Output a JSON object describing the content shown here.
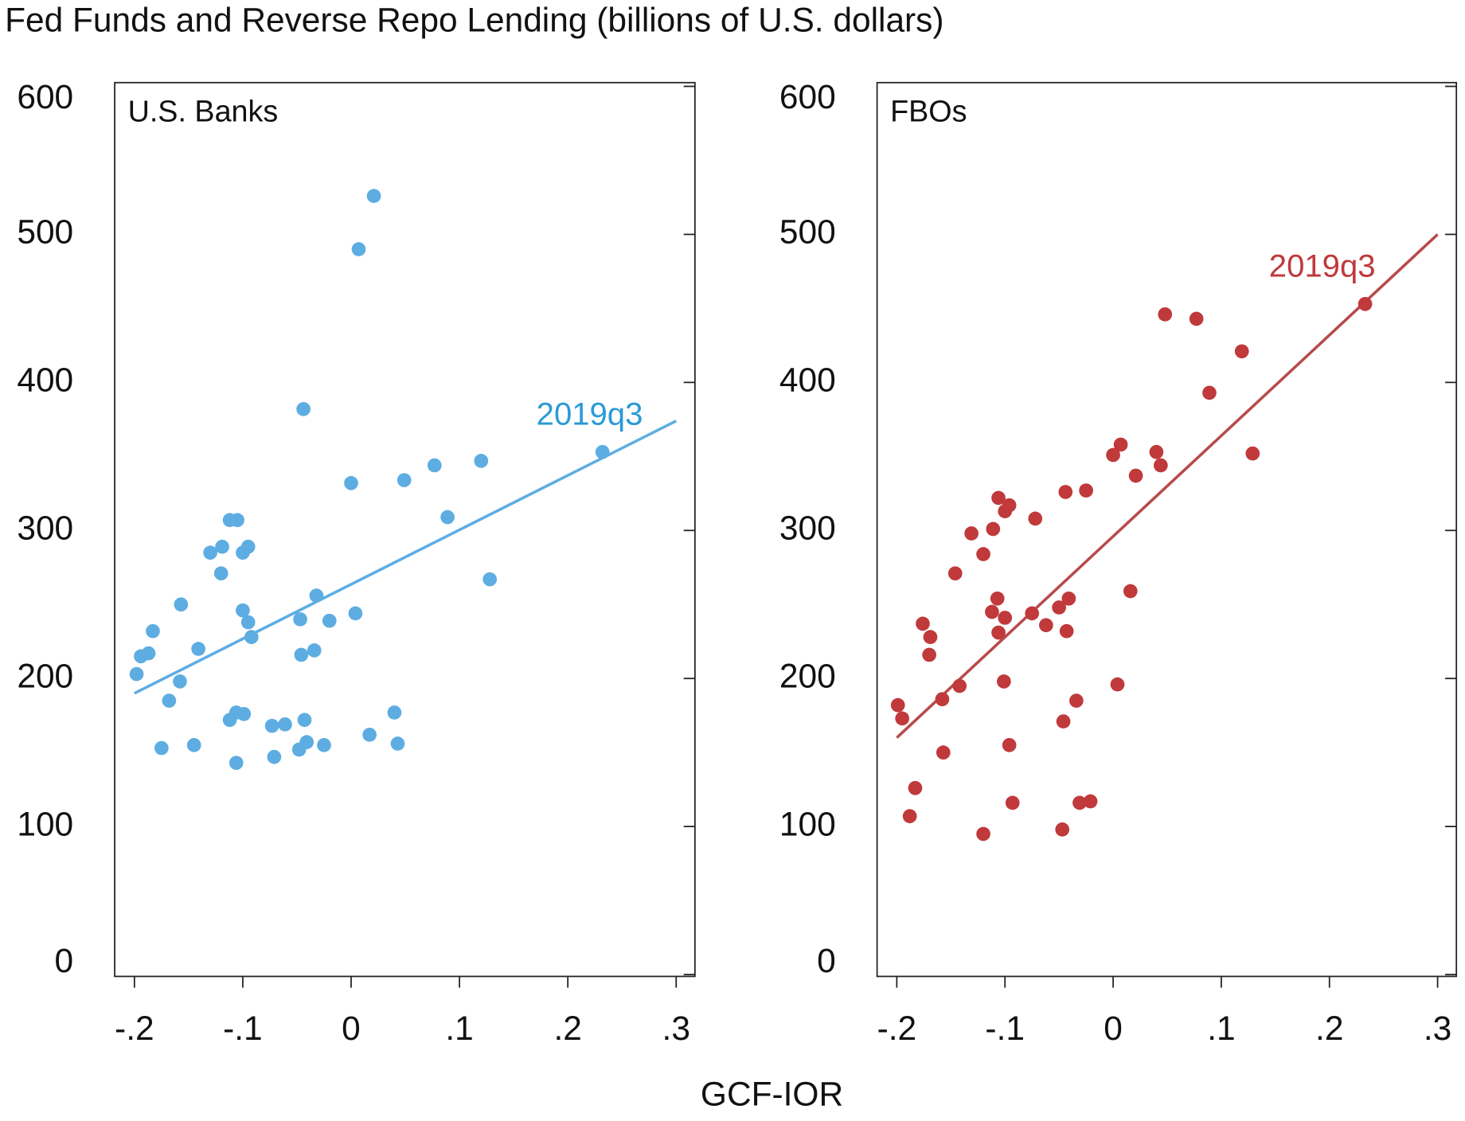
{
  "title": "Fed Funds and Reverse Repo Lending (billions of U.S. dollars)",
  "x_label": "GCF-IOR",
  "chart_data": [
    {
      "type": "scatter",
      "panel_label": "U.S. Banks",
      "color": "#5dade2",
      "x": [
        -0.198,
        -0.194,
        -0.187,
        -0.183,
        -0.175,
        -0.168,
        -0.158,
        -0.157,
        -0.145,
        -0.141,
        -0.13,
        -0.119,
        -0.12,
        -0.112,
        -0.105,
        -0.112,
        -0.106,
        -0.099,
        -0.106,
        -0.1,
        -0.1,
        -0.095,
        -0.095,
        -0.092,
        -0.073,
        -0.071,
        -0.061,
        -0.048,
        -0.047,
        -0.046,
        -0.044,
        -0.043,
        -0.041,
        -0.034,
        -0.032,
        -0.025,
        -0.02,
        0.0,
        0.004,
        0.007,
        0.017,
        0.021,
        0.04,
        0.043,
        0.049,
        0.077,
        0.089,
        0.12,
        0.128,
        0.232
      ],
      "values": [
        203,
        215,
        217,
        232,
        153,
        185,
        198,
        250,
        155,
        220,
        285,
        289,
        271,
        307,
        307,
        172,
        177,
        176,
        143,
        246,
        285,
        289,
        238,
        228,
        168,
        147,
        169,
        152,
        240,
        216,
        382,
        172,
        157,
        219,
        256,
        155,
        239,
        332,
        244,
        490,
        162,
        526,
        177,
        156,
        334,
        344,
        309,
        347,
        267,
        353
      ],
      "fit": {
        "color": "#5dade2",
        "x": [
          -0.2,
          0.3
        ],
        "values": [
          190,
          374
        ]
      },
      "annotation": {
        "text": "2019q3",
        "color": "#2a9ad6"
      },
      "xlim": [
        -0.2,
        0.3
      ],
      "xticks": [
        {
          "value": -0.2,
          "label": "-.2"
        },
        {
          "value": -0.1,
          "label": "-.1"
        },
        0,
        {
          "value": 0.1,
          "label": ".1"
        },
        {
          "value": 0.2,
          "label": ".2"
        },
        {
          "value": 0.3,
          "label": ".3"
        }
      ],
      "ylim": [
        0,
        600
      ],
      "yticks": [
        0,
        100,
        200,
        300,
        400,
        500,
        600
      ]
    },
    {
      "type": "scatter",
      "panel_label": "FBOs",
      "color": "#c0393b",
      "x": [
        -0.199,
        -0.195,
        -0.188,
        -0.183,
        -0.176,
        -0.169,
        -0.17,
        -0.158,
        -0.157,
        -0.146,
        -0.142,
        -0.131,
        -0.12,
        -0.12,
        -0.112,
        -0.111,
        -0.107,
        -0.106,
        -0.106,
        -0.101,
        -0.1,
        -0.1,
        -0.096,
        -0.096,
        -0.093,
        -0.075,
        -0.072,
        -0.062,
        -0.05,
        -0.047,
        -0.046,
        -0.044,
        -0.043,
        -0.041,
        -0.034,
        -0.031,
        -0.025,
        -0.021,
        0.0,
        0.004,
        0.007,
        0.016,
        0.021,
        0.04,
        0.044,
        0.048,
        0.077,
        0.089,
        0.119,
        0.129,
        0.233
      ],
      "values": [
        182,
        173,
        107,
        126,
        237,
        228,
        216,
        186,
        150,
        271,
        195,
        298,
        284,
        95,
        245,
        301,
        254,
        231,
        322,
        198,
        241,
        313,
        317,
        155,
        116,
        244,
        308,
        236,
        248,
        98,
        171,
        326,
        232,
        254,
        185,
        116,
        327,
        117,
        351,
        196,
        358,
        259,
        337,
        353,
        344,
        446,
        443,
        393,
        421,
        352,
        453
      ],
      "fit": {
        "color": "#b84a4a",
        "x": [
          -0.2,
          0.3
        ],
        "values": [
          160,
          500
        ]
      },
      "annotation": {
        "text": "2019q3",
        "color": "#c0393b"
      },
      "xlim": [
        -0.2,
        0.3
      ],
      "xticks": [
        {
          "value": -0.2,
          "label": "-.2"
        },
        {
          "value": -0.1,
          "label": "-.1"
        },
        0,
        {
          "value": 0.1,
          "label": ".1"
        },
        {
          "value": 0.2,
          "label": ".2"
        },
        {
          "value": 0.3,
          "label": ".3"
        }
      ],
      "ylim": [
        0,
        600
      ],
      "yticks": [
        0,
        100,
        200,
        300,
        400,
        500,
        600
      ]
    }
  ]
}
